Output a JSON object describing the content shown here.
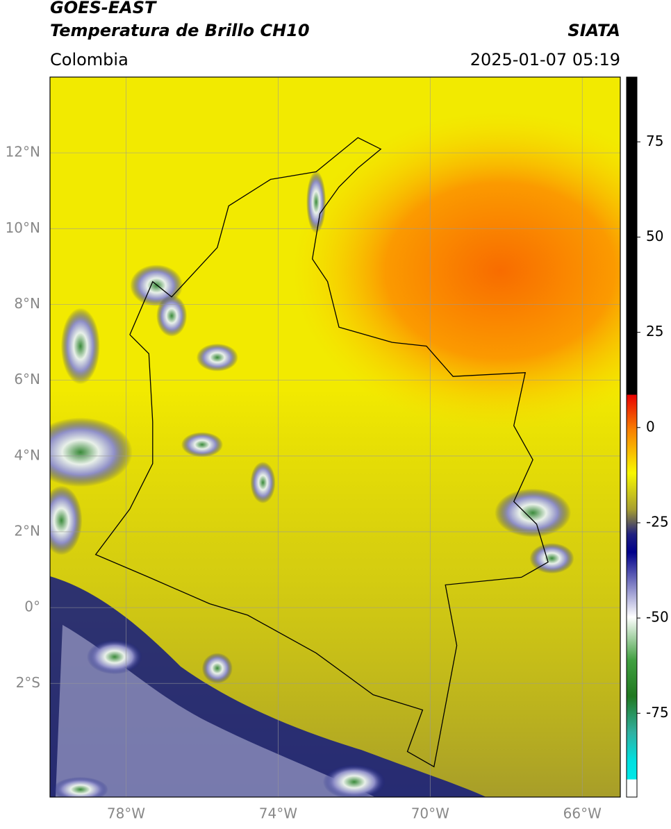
{
  "header": {
    "satellite": "GOES-EAST",
    "product": "Temperatura de Brillo CH10",
    "region": "Colombia",
    "source": "SIATA",
    "datetime": "2025-01-07 05:19"
  },
  "map": {
    "lon_lim": [
      -80,
      -65
    ],
    "lat_lim": [
      -5,
      14
    ],
    "grid": true,
    "lon_ticks": [
      {
        "value": -78,
        "label": "78°W"
      },
      {
        "value": -74,
        "label": "74°W"
      },
      {
        "value": -70,
        "label": "70°W"
      },
      {
        "value": -66,
        "label": "66°W"
      }
    ],
    "lat_ticks": [
      {
        "value": 12,
        "label": "12°N"
      },
      {
        "value": 10,
        "label": "10°N"
      },
      {
        "value": 8,
        "label": "8°N"
      },
      {
        "value": 6,
        "label": "6°N"
      },
      {
        "value": 4,
        "label": "4°N"
      },
      {
        "value": 2,
        "label": "2°N"
      },
      {
        "value": 0,
        "label": "0°"
      },
      {
        "value": -2,
        "label": "2°S"
      }
    ]
  },
  "colorbar": {
    "lim": [
      -97,
      92
    ],
    "ticks": [
      75,
      50,
      25,
      0,
      -25,
      -50,
      -75
    ]
  }
}
